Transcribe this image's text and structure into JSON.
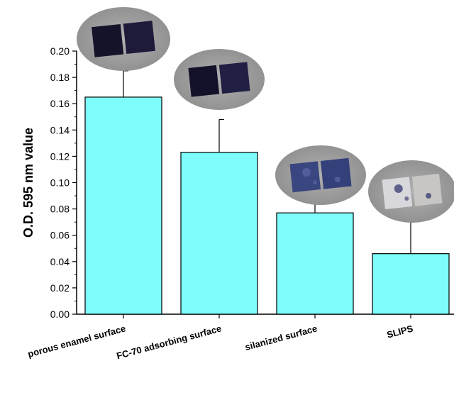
{
  "chart_data": {
    "type": "bar",
    "title": "",
    "xlabel": "",
    "ylabel": "O.D. 595 nm value",
    "ylim": [
      0,
      0.2
    ],
    "yticks": [
      "0.00",
      "0.02",
      "0.04",
      "0.06",
      "0.08",
      "0.10",
      "0.12",
      "0.14",
      "0.16",
      "0.18",
      "0.20"
    ],
    "categories": [
      "porous enamel surface",
      "FC-70  adsorbing surface",
      "silanized surface",
      "SLIPS"
    ],
    "values": [
      0.165,
      0.123,
      0.077,
      0.046
    ],
    "error_upper": [
      0.02,
      0.025,
      0.011,
      0.027
    ],
    "grid": false,
    "bar_color": "#7ffcfc",
    "bar_stroke": "#000000",
    "photo_icons": [
      "sample-photo-dark-stained",
      "sample-photo-dark-stained",
      "sample-photo-blue-stained",
      "sample-photo-light-stained"
    ]
  }
}
